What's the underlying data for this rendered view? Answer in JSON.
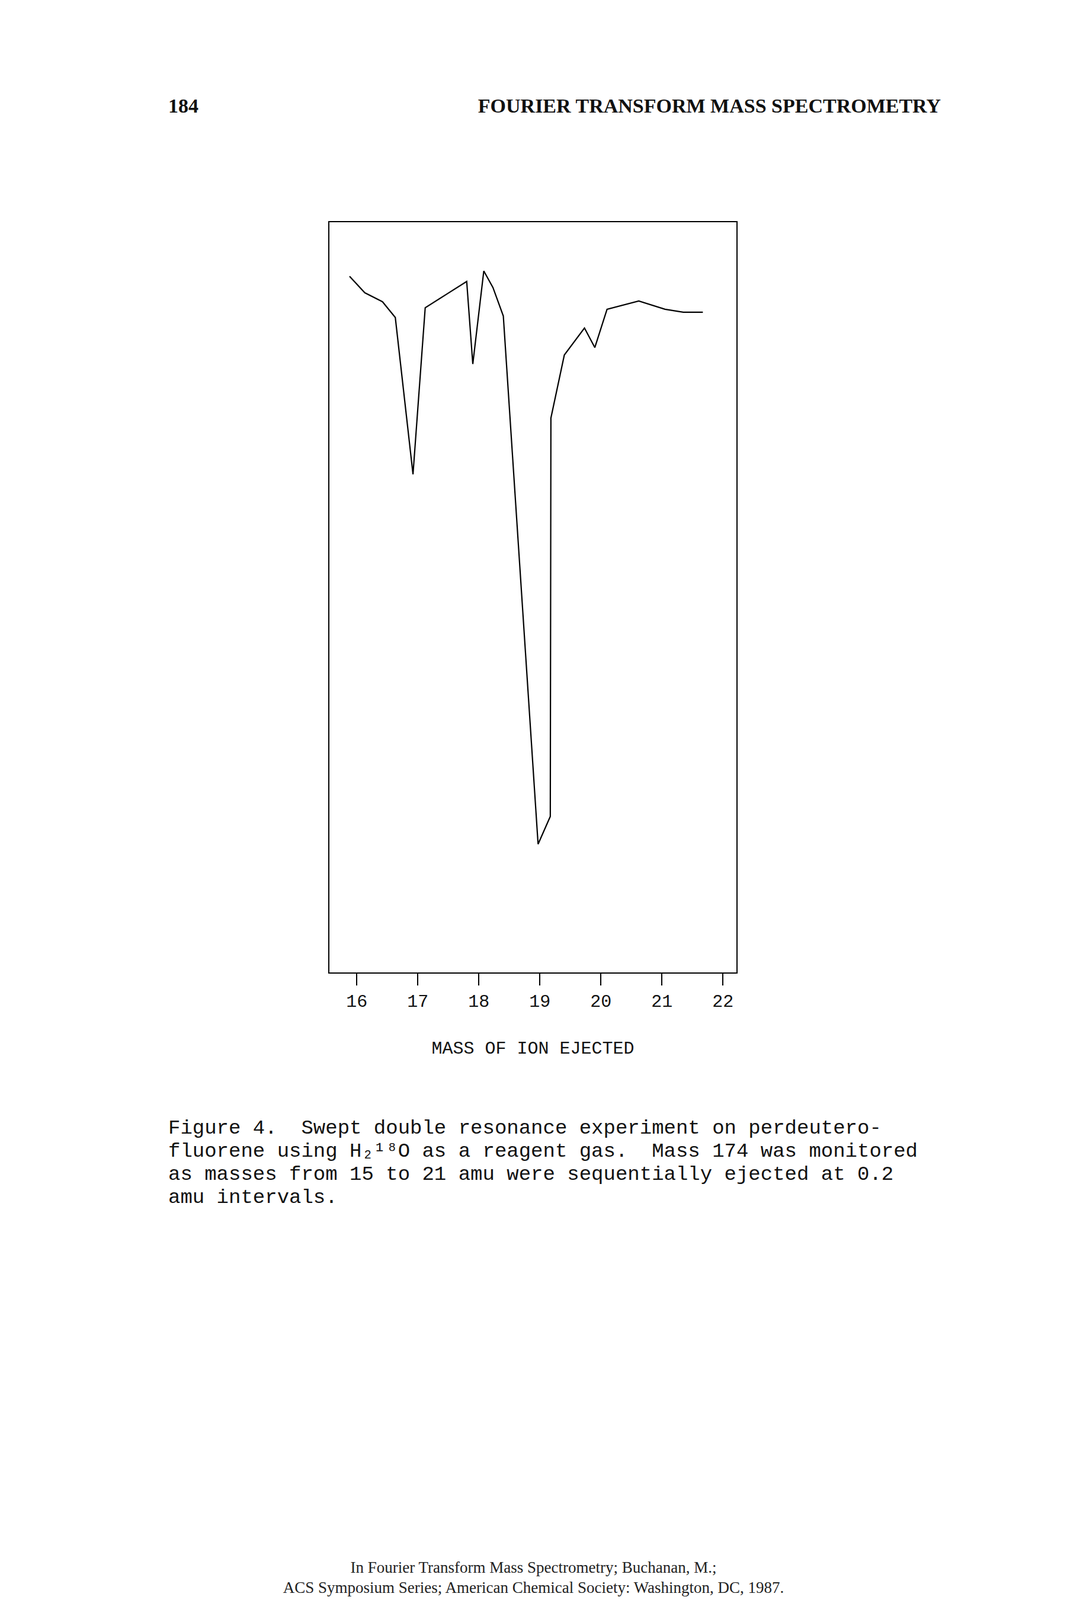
{
  "header": {
    "page_number": "184",
    "running_title": "FOURIER TRANSFORM MASS SPECTROMETRY"
  },
  "chart_data": {
    "type": "line",
    "x_label": "MASS OF ION EJECTED",
    "x": [
      15.88,
      16.13,
      16.42,
      16.63,
      16.92,
      17.12,
      17.8,
      17.9,
      18.08,
      18.23,
      18.4,
      18.97,
      19.17,
      19.18,
      19.4,
      19.73,
      19.9,
      20.1,
      20.62,
      21.05,
      21.35,
      21.67
    ],
    "values": [
      92.8,
      90.6,
      89.4,
      87.3,
      66.4,
      88.6,
      92.1,
      81.1,
      93.5,
      91.3,
      87.5,
      17.1,
      20.8,
      73.9,
      82.3,
      85.9,
      83.3,
      88.4,
      89.5,
      88.4,
      88.0,
      88.0
    ],
    "color": "#000000",
    "xlim": [
      15.55,
      22.22
    ],
    "xticks": [
      16,
      17,
      18,
      19,
      20,
      21,
      22
    ],
    "ylim": [
      0,
      100
    ],
    "grid": false,
    "tick_labels": "x"
  },
  "caption": [
    "Figure 4.  Swept double resonance experiment on perdeutero-",
    "fluorene using H₂¹⁸O as a reagent gas.  Mass 174 was monitored",
    "as masses from 15 to 21 amu were sequentially ejected at 0.2",
    "amu intervals."
  ],
  "footer": [
    "In Fourier Transform Mass Spectrometry; Buchanan, M.;",
    "ACS Symposium Series; American Chemical Society: Washington, DC, 1987."
  ]
}
